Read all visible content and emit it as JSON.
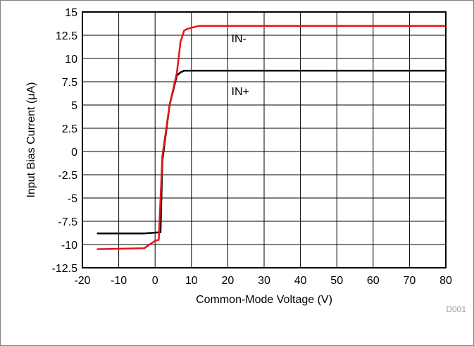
{
  "chart_data": {
    "type": "line",
    "title": "",
    "xlabel": "Common-Mode Voltage (V)",
    "ylabel": "Input Bias Current (μA)",
    "xlim": [
      -20,
      80
    ],
    "ylim": [
      -12.5,
      15
    ],
    "x_ticks": [
      -20,
      -10,
      0,
      10,
      20,
      30,
      40,
      50,
      60,
      70,
      80
    ],
    "y_ticks": [
      15,
      12.5,
      10,
      7.5,
      5,
      2.5,
      0,
      -2.5,
      -5,
      -7.5,
      -10,
      -12.5
    ],
    "x_tick_labels": [
      "-20",
      "-10",
      "0",
      "10",
      "20",
      "30",
      "40",
      "50",
      "60",
      "70",
      "80"
    ],
    "y_tick_labels": [
      "15",
      "12.5",
      "10",
      "7.5",
      "5",
      "2.5",
      "0",
      "-2.5",
      "-5",
      "-7.5",
      "-10",
      "-12.5"
    ],
    "grid": true,
    "figure_id": "D001",
    "series": [
      {
        "name": "IN-",
        "color": "#e8141c",
        "x": [
          -16,
          -3,
          0,
          1,
          2,
          4,
          6,
          7,
          8,
          9,
          11,
          12,
          80
        ],
        "y": [
          -10.5,
          -10.4,
          -9.6,
          -9.5,
          -0.5,
          5,
          8.5,
          11.8,
          13,
          13.2,
          13.4,
          13.5,
          13.5
        ]
      },
      {
        "name": "IN+",
        "color": "#000000",
        "x": [
          -16,
          -3,
          1,
          1.5,
          2,
          4,
          6,
          7,
          8,
          80
        ],
        "y": [
          -8.8,
          -8.8,
          -8.7,
          -8.7,
          -1,
          5,
          8.2,
          8.5,
          8.7,
          8.7
        ]
      }
    ],
    "annotations": [
      {
        "text": "IN-",
        "x": 21,
        "y": 12.2
      },
      {
        "text": "IN+",
        "x": 21,
        "y": 6.5
      }
    ]
  }
}
